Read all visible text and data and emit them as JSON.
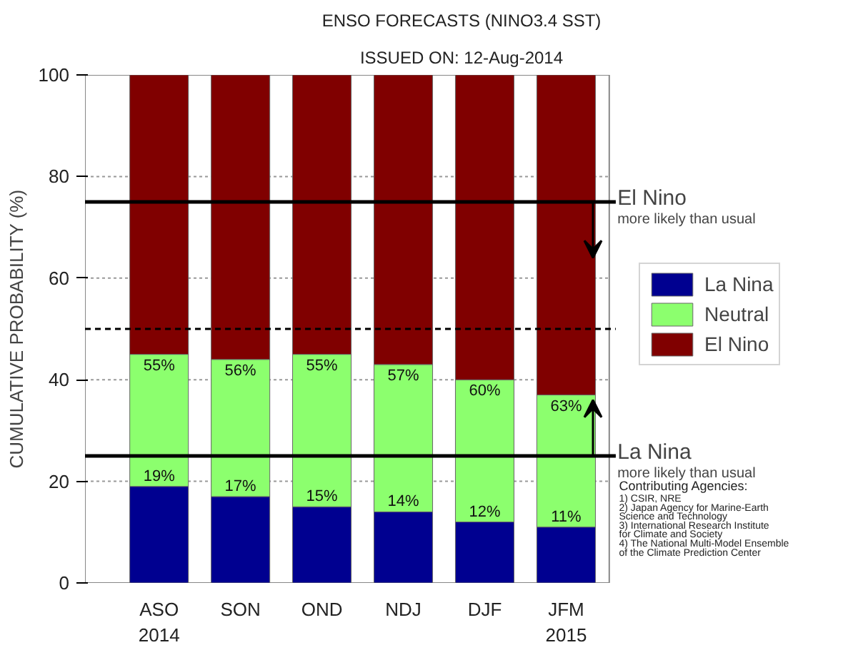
{
  "chart_data": {
    "type": "bar",
    "title": "ENSO FORECASTS (NINO3.4 SST)",
    "subtitle": "ISSUED ON: 12-Aug-2014",
    "ylabel": "CUMULATIVE PROBABILITY (%)",
    "categories": [
      "ASO\n2014",
      "SON",
      "OND",
      "NDJ",
      "DJF",
      "JFM\n2015"
    ],
    "stacked": true,
    "series": [
      {
        "name": "La Nina",
        "color": "#000090",
        "values": [
          19,
          17,
          15,
          14,
          12,
          11
        ],
        "value_labels": [
          "19%",
          "17%",
          "15%",
          "14%",
          "12%",
          "11%"
        ]
      },
      {
        "name": "Neutral",
        "color": "#8cff6e",
        "values": [
          26,
          27,
          30,
          29,
          28,
          26
        ]
      },
      {
        "name": "El Nino",
        "color": "#800000",
        "values": [
          55,
          56,
          55,
          57,
          60,
          63
        ],
        "value_labels": [
          "55%",
          "56%",
          "55%",
          "57%",
          "60%",
          "63%"
        ]
      }
    ],
    "ylim": [
      0,
      100
    ],
    "yticks": [
      0,
      20,
      40,
      60,
      80,
      100
    ],
    "grid": "y",
    "legend": "right",
    "ref_lines": [
      {
        "axis": "y",
        "value": 75,
        "label": "El Nino\nmore likely than usual",
        "color": "#000000",
        "line_style": "solid"
      },
      {
        "axis": "y",
        "value": 25,
        "label": "La Nina\nmore likely than usual",
        "color": "#000000",
        "line_style": "solid"
      },
      {
        "axis": "y",
        "value": 50,
        "color": "#000000",
        "line_style": "dashed"
      }
    ],
    "annotations": [
      "Contributing Agencies:\n1) CSIR, NRE\n2) Japan Agency for Marine-Earth\n    Science and Technology\n3) International Research Institute\n    for Climate and Society\n4) The National Multi-Model Ensemble\n    of the Climate Prediction Center"
    ]
  }
}
